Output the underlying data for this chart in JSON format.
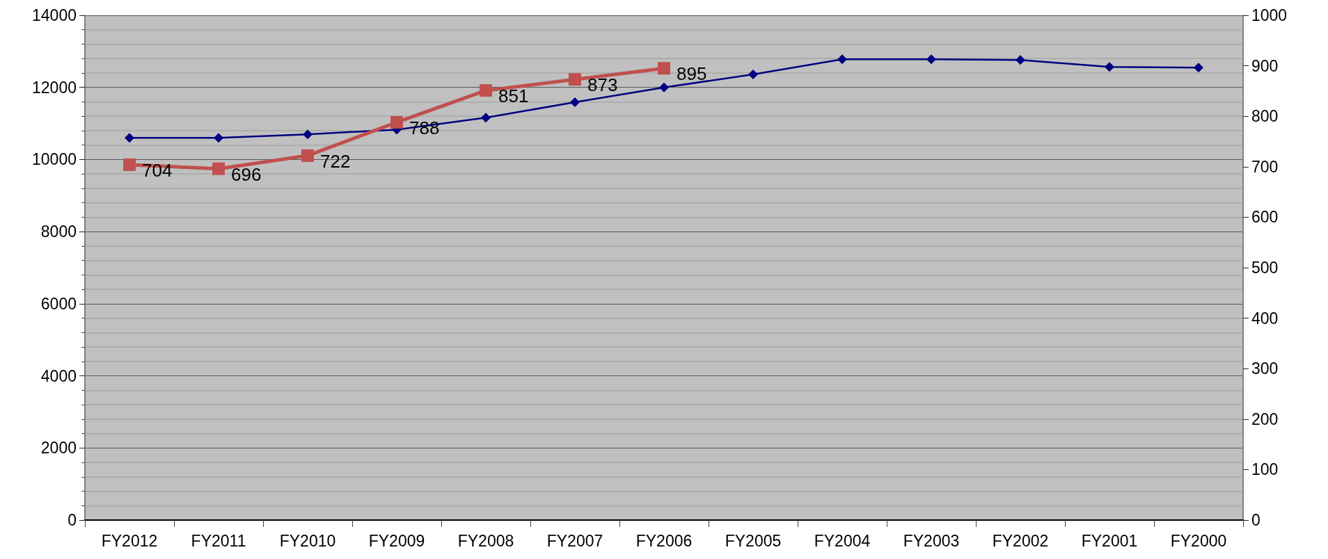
{
  "chart_data": {
    "type": "line",
    "categories": [
      "FY2012",
      "FY2011",
      "FY2010",
      "FY2009",
      "FY2008",
      "FY2007",
      "FY2006",
      "FY2005",
      "FY2004",
      "FY2003",
      "FY2002",
      "FY2001",
      "FY2000"
    ],
    "series": [
      {
        "color": "#000080",
        "marker": "diamond",
        "values": [
          10600,
          10600,
          10700,
          10830,
          11160,
          11590,
          12000,
          12360,
          12780,
          12780,
          12760,
          12570,
          12550
        ]
      },
      {
        "color": "#c0504d",
        "marker": "square",
        "axis": "y2",
        "values": [
          704,
          696,
          722,
          788,
          851,
          873,
          895,
          null,
          null,
          null,
          null,
          null,
          null
        ],
        "value_labels": [
          "704",
          "696",
          "722",
          "788",
          "851",
          "873",
          "895",
          null,
          null,
          null,
          null,
          null,
          null
        ]
      }
    ],
    "ylim": [
      0,
      14000
    ],
    "yticks": [
      0,
      2000,
      4000,
      6000,
      8000,
      10000,
      12000,
      14000
    ],
    "y2lim": [
      0,
      1000
    ],
    "y2ticks": [
      0,
      100,
      200,
      300,
      400,
      500,
      600,
      700,
      800,
      900,
      1000
    ],
    "grid": "y"
  }
}
